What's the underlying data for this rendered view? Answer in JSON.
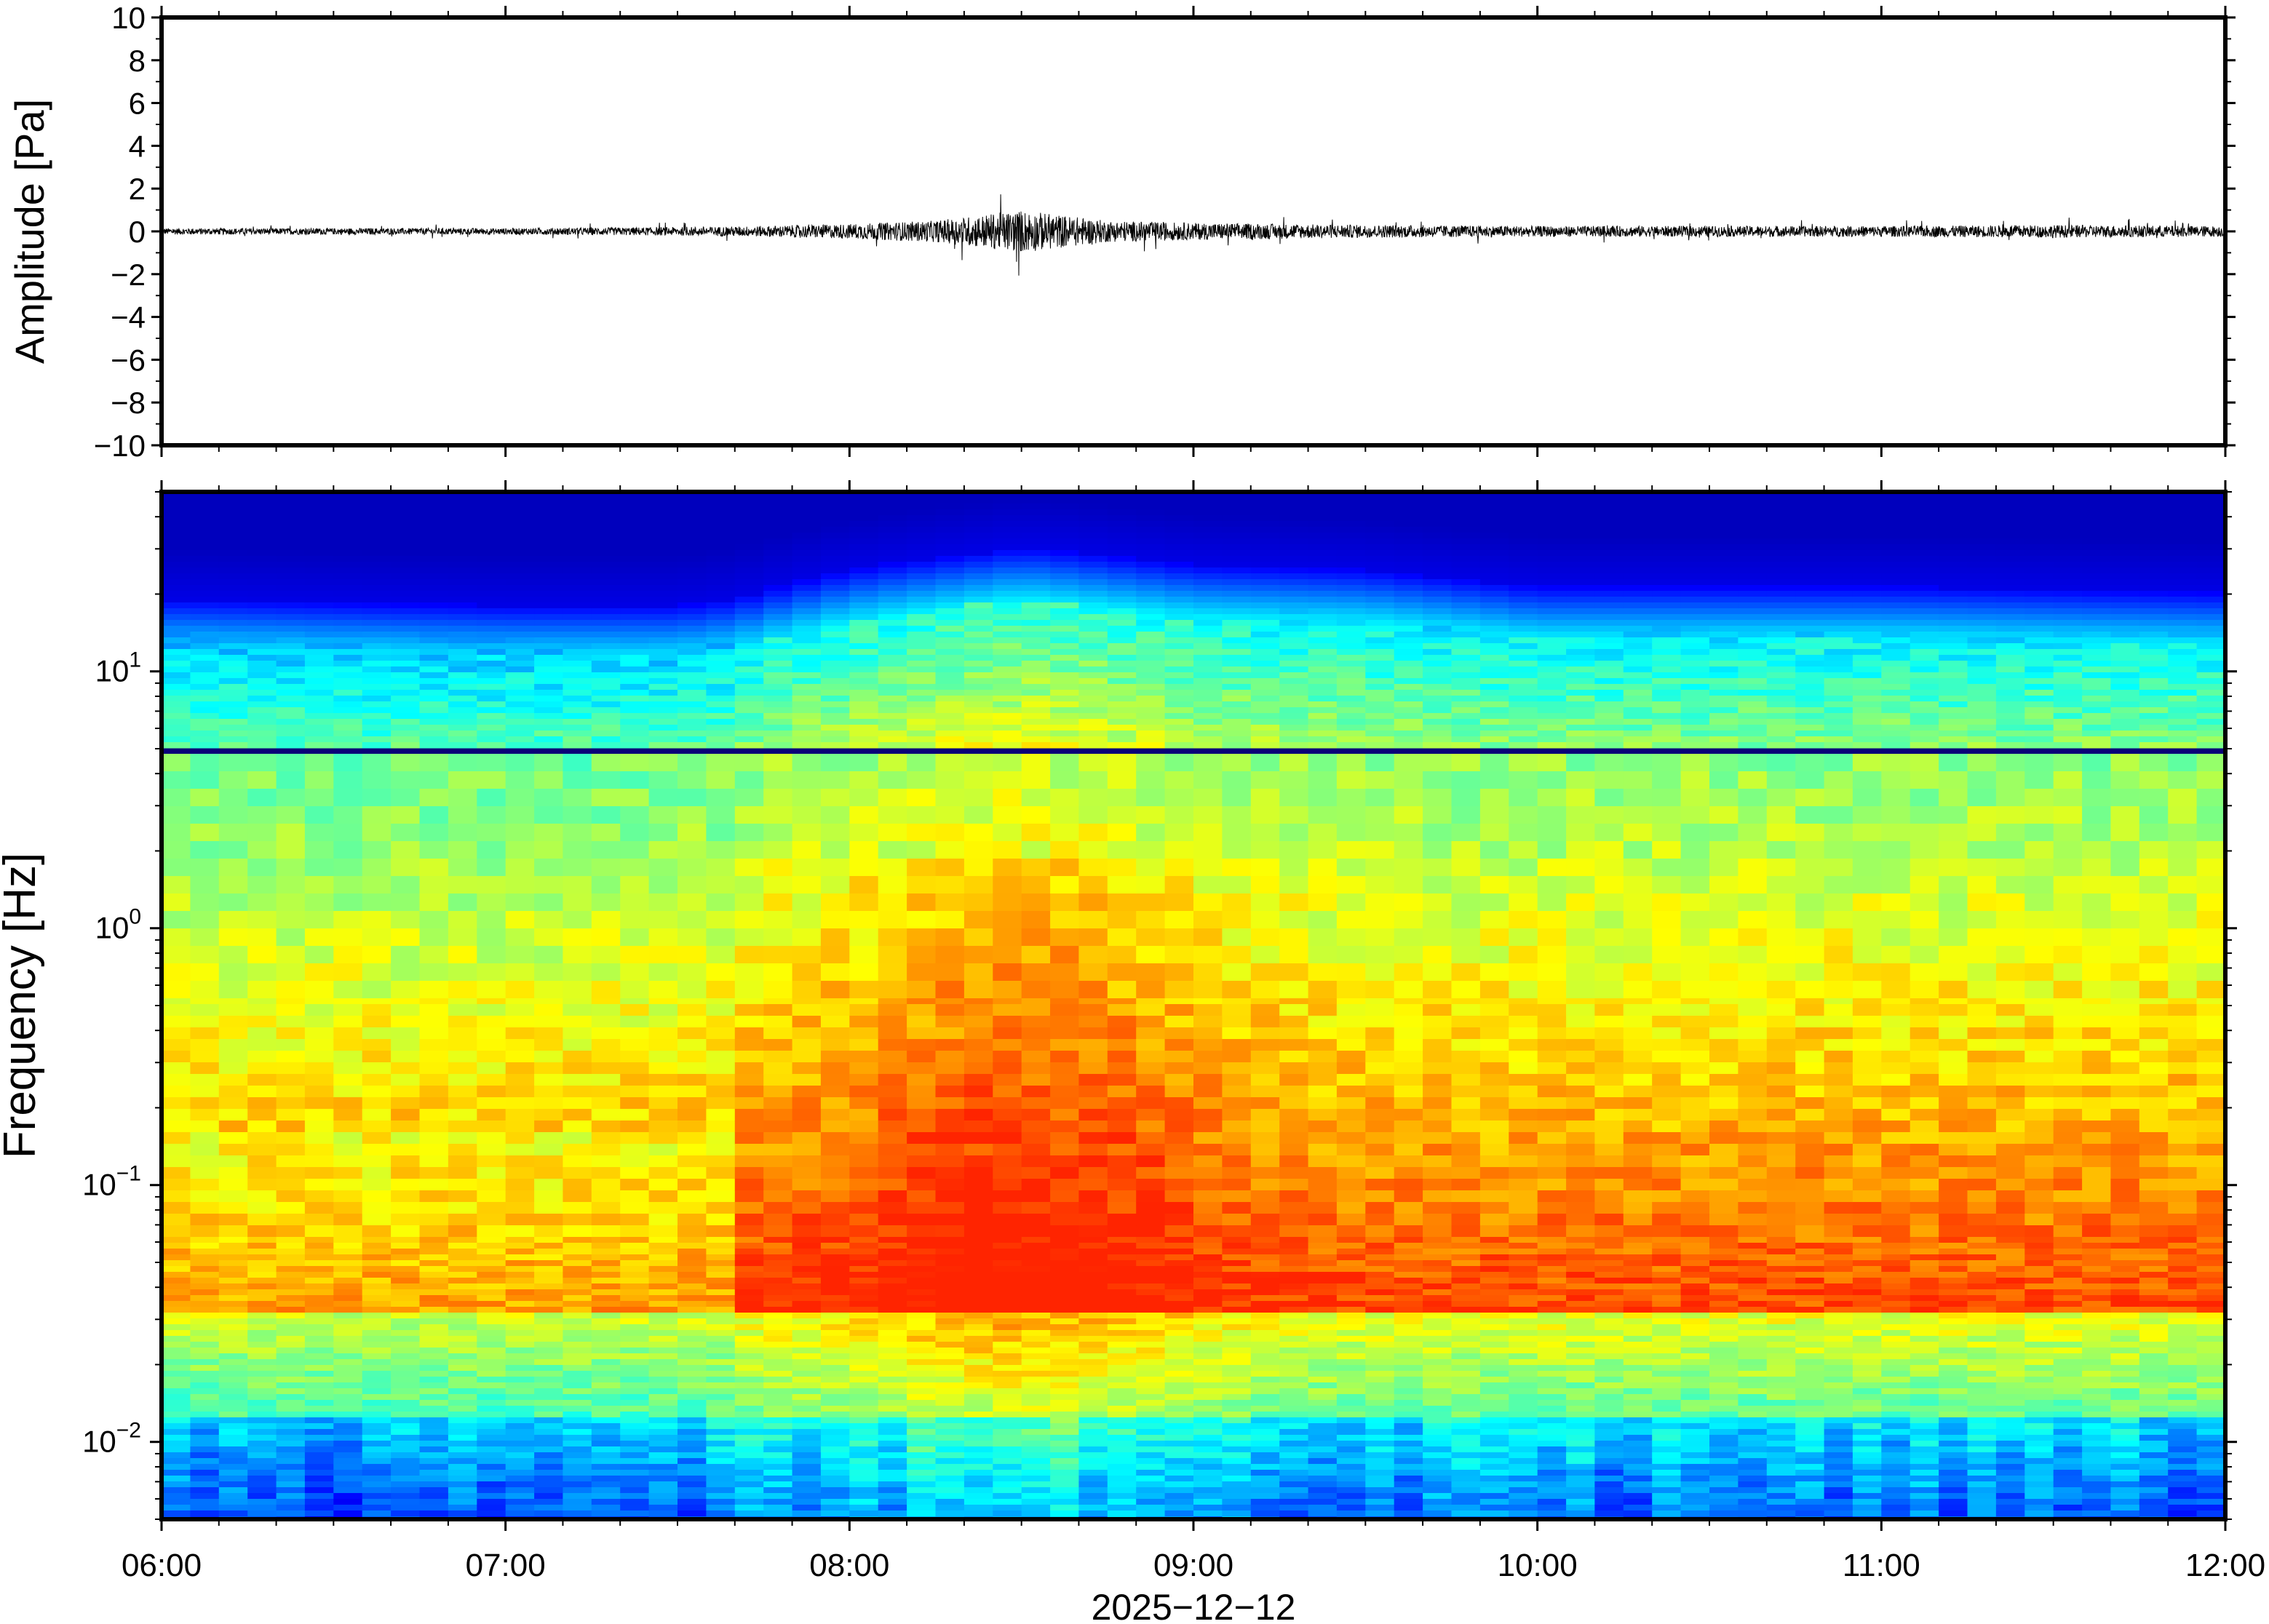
{
  "chart_data": [
    {
      "type": "line",
      "panel": "waveform",
      "ylabel": "Amplitude [Pa]",
      "ylim": [
        -10,
        10
      ],
      "yticks": [
        10,
        8,
        6,
        4,
        2,
        0,
        -2,
        -4,
        -6,
        -8,
        -10
      ],
      "ytick_labels": [
        "10",
        "8",
        "6",
        "4",
        "2",
        "0",
        "−2",
        "−4",
        "−6",
        "−8",
        "−10"
      ],
      "x_range": [
        "06:00",
        "12:00"
      ],
      "series": [
        {
          "color": "#000000",
          "envelope_times": [
            "06:00",
            "06:30",
            "07:00",
            "07:30",
            "07:45",
            "08:00",
            "08:15",
            "08:30",
            "08:45",
            "09:00",
            "09:30",
            "10:00",
            "10:30",
            "11:00",
            "11:30",
            "12:00"
          ],
          "envelope_amp": [
            0.15,
            0.15,
            0.15,
            0.2,
            0.25,
            0.35,
            0.5,
            1.0,
            0.5,
            0.4,
            0.3,
            0.25,
            0.25,
            0.25,
            0.3,
            0.25
          ]
        }
      ]
    },
    {
      "type": "heatmap",
      "panel": "spectrogram",
      "ylabel": "Frequency [Hz]",
      "yscale": "log",
      "ylim": [
        0.005,
        50
      ],
      "ytick_labels": [
        {
          "base": "10",
          "exp": "1",
          "value": 10
        },
        {
          "base": "10",
          "exp": "0",
          "value": 1
        },
        {
          "base": "10",
          "exp": "−1",
          "value": 0.1
        },
        {
          "base": "10",
          "exp": "−2",
          "value": 0.01
        }
      ],
      "colormap": "jet",
      "x_range": [
        "06:00",
        "12:00"
      ],
      "cutoff_freq_profile": {
        "times": [
          "06:00",
          "07:00",
          "07:30",
          "07:40",
          "08:00",
          "08:30",
          "09:00",
          "09:30",
          "10:00",
          "11:00",
          "12:00"
        ],
        "freq_hz": [
          17,
          16,
          16,
          17,
          22,
          27,
          23,
          22,
          19,
          19,
          18
        ]
      },
      "energy_peak": {
        "time": "08:30",
        "note": "broadband energy increase"
      }
    }
  ],
  "xaxis": {
    "tick_labels": [
      "06:00",
      "07:00",
      "08:00",
      "09:00",
      "10:00",
      "11:00",
      "12:00"
    ],
    "date_label": "2025−12−12"
  }
}
